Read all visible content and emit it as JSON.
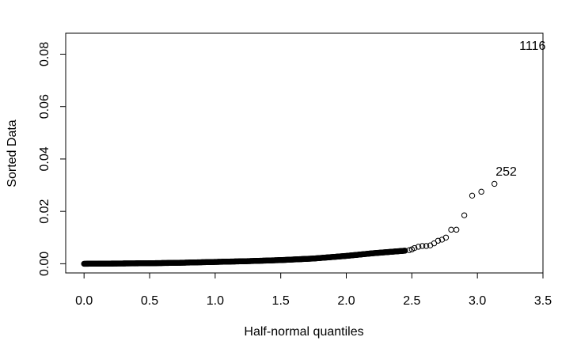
{
  "chart_data": {
    "type": "scatter",
    "title": "",
    "xlabel": "Half-normal quantiles",
    "ylabel": "Sorted Data",
    "xlim": [
      -0.14,
      3.5
    ],
    "ylim": [
      -0.0035,
      0.088
    ],
    "xticks": [
      "0.0",
      "0.5",
      "1.0",
      "1.5",
      "2.0",
      "2.5",
      "3.0",
      "3.5"
    ],
    "yticks": [
      "0.00",
      "0.02",
      "0.04",
      "0.06",
      "0.08"
    ],
    "grid": false,
    "bulk_curve": [
      [
        0.0,
        0.0
      ],
      [
        0.25,
        0.0001
      ],
      [
        0.5,
        0.0002
      ],
      [
        0.75,
        0.0004
      ],
      [
        1.0,
        0.0007
      ],
      [
        1.25,
        0.001
      ],
      [
        1.5,
        0.0014
      ],
      [
        1.75,
        0.002
      ],
      [
        2.0,
        0.003
      ],
      [
        2.2,
        0.004
      ],
      [
        2.35,
        0.0046
      ],
      [
        2.45,
        0.005
      ]
    ],
    "tail_points": [
      [
        2.48,
        0.0052
      ],
      [
        2.5,
        0.0055
      ],
      [
        2.52,
        0.006
      ],
      [
        2.55,
        0.0065
      ],
      [
        2.58,
        0.0068
      ],
      [
        2.61,
        0.0068
      ],
      [
        2.64,
        0.007
      ],
      [
        2.67,
        0.0078
      ],
      [
        2.7,
        0.0088
      ],
      [
        2.73,
        0.0092
      ],
      [
        2.76,
        0.01
      ],
      [
        2.8,
        0.013
      ],
      [
        2.84,
        0.013
      ],
      [
        2.9,
        0.0185
      ],
      [
        2.96,
        0.026
      ],
      [
        3.03,
        0.0275
      ],
      [
        3.13,
        0.0305
      ]
    ],
    "labeled_points": [
      {
        "label": "252",
        "x": 3.22,
        "y": 0.0355
      },
      {
        "label": "1116",
        "x": 3.42,
        "y": 0.0835
      }
    ]
  }
}
